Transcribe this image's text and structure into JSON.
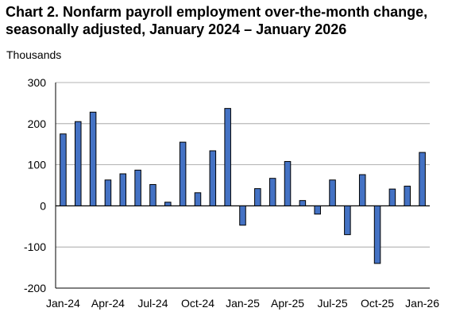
{
  "chart_data": {
    "type": "bar",
    "title_line1": "Chart 2. Nonfarm payroll employment over-the-month change,",
    "title_line2": "seasonally adjusted, January 2024 – January 2026",
    "ylabel": "Thousands",
    "xlabel": "",
    "ylim": [
      -200,
      300
    ],
    "yticks": [
      -200,
      -100,
      0,
      100,
      200,
      300
    ],
    "grid": true,
    "bar_color": "#4472C4",
    "bar_edge_color": "#000000",
    "categories": [
      "Jan-24",
      "Feb-24",
      "Mar-24",
      "Apr-24",
      "May-24",
      "Jun-24",
      "Jul-24",
      "Aug-24",
      "Sep-24",
      "Oct-24",
      "Nov-24",
      "Dec-24",
      "Jan-25",
      "Feb-25",
      "Mar-25",
      "Apr-25",
      "May-25",
      "Jun-25",
      "Jul-25",
      "Aug-25",
      "Sep-25",
      "Oct-25",
      "Nov-25",
      "Dec-25",
      "Jan-26"
    ],
    "tick_labels": [
      "Jan-24",
      "Apr-24",
      "Jul-24",
      "Oct-24",
      "Jan-25",
      "Apr-25",
      "Jul-25",
      "Oct-25",
      "Jan-26"
    ],
    "values": [
      175,
      205,
      228,
      63,
      78,
      87,
      52,
      9,
      155,
      32,
      134,
      237,
      -47,
      42,
      67,
      108,
      13,
      -20,
      63,
      -70,
      76,
      -140,
      41,
      48,
      130
    ]
  }
}
